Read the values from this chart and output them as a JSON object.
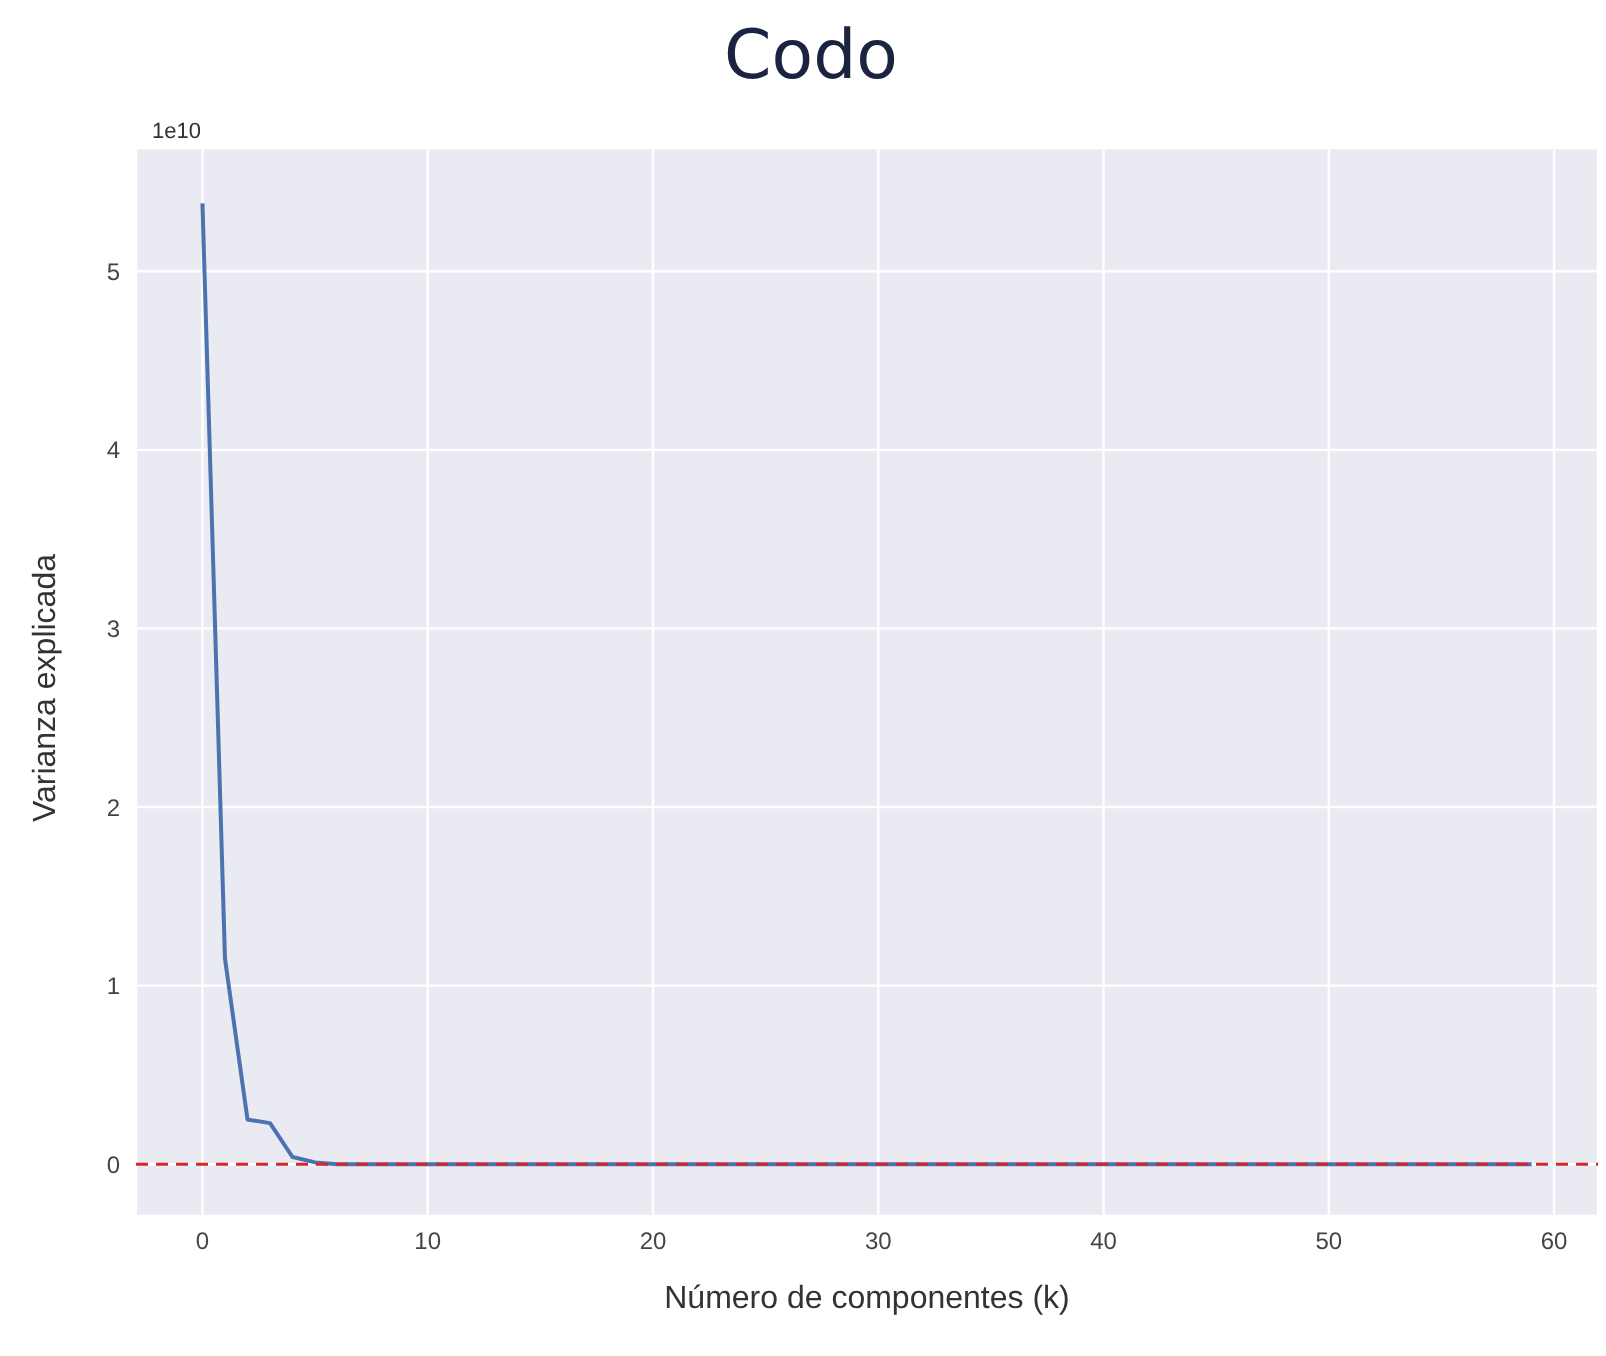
{
  "chart_data": {
    "type": "line",
    "title": "Codo",
    "xlabel": "Número de componentes (k)",
    "ylabel": "Varianza explicada",
    "annotations": [
      "1e10"
    ],
    "x": [
      0,
      1,
      2,
      3,
      4,
      5,
      6,
      7,
      8,
      9,
      10,
      11,
      12,
      13,
      14,
      15,
      16,
      17,
      18,
      19,
      20,
      21,
      22,
      23,
      24,
      25,
      26,
      27,
      28,
      29,
      30,
      31,
      32,
      33,
      34,
      35,
      36,
      37,
      38,
      39,
      40,
      41,
      42,
      43,
      44,
      45,
      46,
      47,
      48,
      49,
      50,
      51,
      52,
      53,
      54,
      55,
      56,
      57,
      58,
      59
    ],
    "series": [
      {
        "color": "#4c72b0",
        "values": [
          5.38,
          1.15,
          0.25,
          0.23,
          0.04,
          0.01,
          0,
          0,
          0,
          0,
          0,
          0,
          0,
          0,
          0,
          0,
          0,
          0,
          0,
          0,
          0,
          0,
          0,
          0,
          0,
          0,
          0,
          0,
          0,
          0,
          0,
          0,
          0,
          0,
          0,
          0,
          0,
          0,
          0,
          0,
          0,
          0,
          0,
          0,
          0,
          0,
          0,
          0,
          0,
          0,
          0,
          0,
          0,
          0,
          0,
          0,
          0,
          0,
          0,
          0
        ]
      }
    ],
    "xlim": [
      -2.95,
      61.95
    ],
    "xticks": [
      0,
      10,
      20,
      30,
      40,
      50,
      60
    ],
    "ylim": [
      -0.29,
      5.69
    ],
    "yticks": [
      0,
      1,
      2,
      3,
      4,
      5
    ],
    "ref_lines": [
      {
        "axis": "y",
        "value": 0,
        "color": "#d62728",
        "line_style": "dashed"
      }
    ],
    "grid": true,
    "marker": "none",
    "line_style": "solid"
  }
}
